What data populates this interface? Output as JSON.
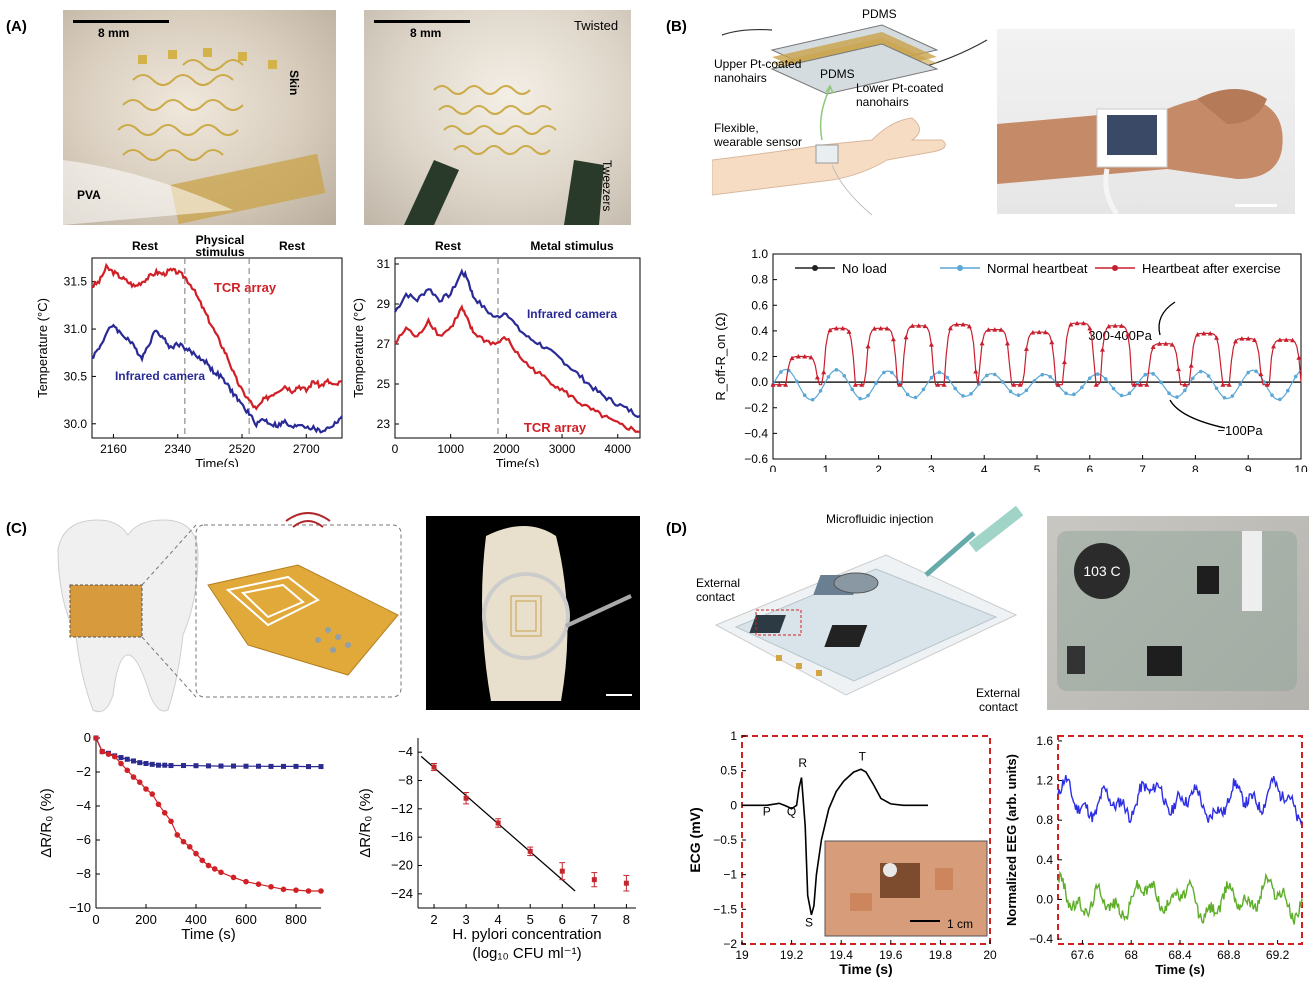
{
  "panels": {
    "A": {
      "label": "(A)",
      "photo1": {
        "scale": "8 mm",
        "skin": "Skin",
        "pva": "PVA"
      },
      "photo2": {
        "scale": "8 mm",
        "twisted": "Twisted",
        "tweezers": "Tweezers"
      },
      "chart1": {
        "phases": [
          "Rest",
          "Physical stimulus",
          "Rest"
        ],
        "series_labels": [
          "TCR array",
          "Infrared camera"
        ]
      },
      "chart2": {
        "phases": [
          "Rest",
          "Metal stimulus"
        ],
        "series_labels": [
          "Infrared camera",
          "TCR array"
        ]
      }
    },
    "B": {
      "label": "(B)",
      "diagram": {
        "pdms_top": "PDMS",
        "upper": "Upper Pt-coated nanohairs",
        "pdms_mid": "PDMS",
        "lower": "Lower Pt-coated nanohairs",
        "sensor": "Flexible, wearable sensor"
      },
      "chart": {
        "ann_high": "300-400Pa",
        "ann_low": "−100Pa"
      }
    },
    "C": {
      "label": "(C)"
    },
    "D": {
      "label": "(D)",
      "diagram": {
        "injection": "Microfluidic injection",
        "ext1": "External contact",
        "ext2": "External contact",
        "component": "103 C"
      },
      "ecg_waves": [
        "P",
        "Q",
        "R",
        "S",
        "T"
      ],
      "inset_scale": "1 cm"
    }
  },
  "chart_data": [
    {
      "id": "A-left",
      "type": "line",
      "xlabel": "Time(s)",
      "ylabel": "Temperature (°C)",
      "xlim": [
        2100,
        2800
      ],
      "ylim": [
        29.85,
        31.75
      ],
      "xticks": [
        2160,
        2340,
        2520,
        2700
      ],
      "yticks": [
        30.0,
        30.5,
        31.0,
        31.5
      ],
      "ytick_labels": [
        "30.0",
        "30.5",
        "31.0",
        "31.5"
      ],
      "vlines": [
        2360,
        2540
      ],
      "series": [
        {
          "name": "TCR array",
          "color": "#d11f26",
          "x": [
            2100,
            2120,
            2140,
            2160,
            2180,
            2200,
            2220,
            2240,
            2260,
            2280,
            2300,
            2320,
            2340,
            2360,
            2380,
            2400,
            2420,
            2440,
            2460,
            2480,
            2500,
            2520,
            2540,
            2560,
            2580,
            2600,
            2620,
            2640,
            2660,
            2680,
            2700,
            2720,
            2740,
            2760,
            2780,
            2800
          ],
          "y": [
            31.45,
            31.5,
            31.65,
            31.6,
            31.55,
            31.5,
            31.45,
            31.5,
            31.55,
            31.6,
            31.58,
            31.62,
            31.6,
            31.55,
            31.45,
            31.3,
            31.15,
            31.0,
            30.85,
            30.7,
            30.5,
            30.35,
            30.25,
            30.15,
            30.25,
            30.3,
            30.35,
            30.4,
            30.35,
            30.4,
            30.35,
            30.45,
            30.4,
            30.45,
            30.4,
            30.45
          ]
        },
        {
          "name": "Infrared camera",
          "color": "#2a2a96",
          "x": [
            2100,
            2120,
            2140,
            2160,
            2180,
            2200,
            2220,
            2240,
            2260,
            2280,
            2300,
            2320,
            2340,
            2360,
            2380,
            2400,
            2420,
            2440,
            2460,
            2480,
            2500,
            2520,
            2540,
            2560,
            2580,
            2600,
            2620,
            2640,
            2660,
            2680,
            2700,
            2720,
            2740,
            2760,
            2780,
            2800
          ],
          "y": [
            30.7,
            30.8,
            30.95,
            31.05,
            30.95,
            30.9,
            30.8,
            30.7,
            30.85,
            31.0,
            30.9,
            30.8,
            30.85,
            30.8,
            30.75,
            30.7,
            30.65,
            30.55,
            30.5,
            30.4,
            30.3,
            30.2,
            30.1,
            30.0,
            30.05,
            30.0,
            29.98,
            30.02,
            29.95,
            30.0,
            29.97,
            29.95,
            29.92,
            29.95,
            30.0,
            30.08
          ]
        }
      ]
    },
    {
      "id": "A-right",
      "type": "line",
      "xlabel": "Time(s)",
      "ylabel": "Temperature (°C)",
      "xlim": [
        0,
        4400
      ],
      "ylim": [
        22.3,
        31.3
      ],
      "xticks": [
        0,
        1000,
        2000,
        3000,
        4000
      ],
      "yticks": [
        23,
        25,
        27,
        29,
        31
      ],
      "vlines": [
        1850
      ],
      "series": [
        {
          "name": "Infrared camera",
          "color": "#2a2a96",
          "x": [
            0,
            200,
            400,
            600,
            800,
            1000,
            1200,
            1300,
            1400,
            1600,
            1800,
            2000,
            2200,
            2400,
            2600,
            2800,
            3000,
            3200,
            3400,
            3600,
            3800,
            4000,
            4200,
            4400
          ],
          "y": [
            28.6,
            29.5,
            29.2,
            29.8,
            29.2,
            29.5,
            30.6,
            30.3,
            29.4,
            28.8,
            28.3,
            28.6,
            27.8,
            27.3,
            27.0,
            26.6,
            26.2,
            25.7,
            25.2,
            24.7,
            24.3,
            24.0,
            23.7,
            23.4
          ]
        },
        {
          "name": "TCR array",
          "color": "#d11f26",
          "x": [
            0,
            200,
            400,
            600,
            800,
            1000,
            1200,
            1300,
            1400,
            1600,
            1800,
            2000,
            2200,
            2400,
            2600,
            2800,
            3000,
            3200,
            3400,
            3600,
            3800,
            4000,
            4200,
            4400
          ],
          "y": [
            27.0,
            27.8,
            27.3,
            28.2,
            27.4,
            27.8,
            28.8,
            28.2,
            27.6,
            27.2,
            27.0,
            27.3,
            26.5,
            25.9,
            25.5,
            25.1,
            24.7,
            24.3,
            23.9,
            23.6,
            23.3,
            23.0,
            22.8,
            22.6
          ]
        }
      ]
    },
    {
      "id": "B",
      "type": "line",
      "xlabel": "Time(s)",
      "ylabel": "R_off-R_on (Ω)",
      "xlim": [
        0,
        10
      ],
      "ylim": [
        -0.6,
        1.0
      ],
      "xticks": [
        0,
        1,
        2,
        3,
        4,
        5,
        6,
        7,
        8,
        9,
        10
      ],
      "yticks": [
        -0.6,
        -0.4,
        -0.2,
        0.0,
        0.2,
        0.4,
        0.6,
        0.8,
        1.0
      ],
      "ytick_labels": [
        "−0.6",
        "−0.4",
        "−0.2",
        "0.0",
        "0.2",
        "0.4",
        "0.6",
        "0.8",
        "1.0"
      ],
      "legend": "top",
      "series": [
        {
          "name": "No load",
          "color": "#222222",
          "marker": "square"
        },
        {
          "name": "Normal heartbeat",
          "color": "#5ba7d6",
          "marker": "circle",
          "period": 0.98,
          "amplitude": 0.1
        },
        {
          "name": "Heartbeat after exercise",
          "color": "#c81e2d",
          "marker": "triangle",
          "peaks": [
            0.55,
            1.25,
            2.05,
            2.75,
            3.55,
            4.2,
            5.05,
            5.8,
            6.5,
            7.4,
            8.2,
            8.95,
            9.7
          ],
          "peak_values": [
            0.2,
            0.42,
            0.42,
            0.44,
            0.45,
            0.41,
            0.39,
            0.46,
            0.44,
            0.3,
            0.38,
            0.34,
            0.33
          ]
        }
      ]
    },
    {
      "id": "C-left",
      "type": "line",
      "xlabel": "Time (s)",
      "ylabel": "ΔR/R₀ (%)",
      "xlim": [
        0,
        900
      ],
      "ylim": [
        -10,
        0
      ],
      "xticks": [
        0,
        200,
        400,
        600,
        800
      ],
      "yticks": [
        0,
        -2,
        -4,
        -6,
        -8,
        -10
      ],
      "ytick_labels": [
        "0",
        "−2",
        "−4",
        "−6",
        "−8",
        "−10"
      ],
      "series": [
        {
          "name": "",
          "color": "#2b2b8f",
          "x": [
            0,
            25,
            50,
            75,
            100,
            125,
            150,
            175,
            200,
            225,
            250,
            275,
            300,
            350,
            400,
            450,
            500,
            550,
            600,
            650,
            700,
            750,
            800,
            850,
            900
          ],
          "y": [
            0,
            -0.8,
            -0.9,
            -1.05,
            -1.15,
            -1.25,
            -1.35,
            -1.45,
            -1.5,
            -1.55,
            -1.6,
            -1.6,
            -1.62,
            -1.62,
            -1.63,
            -1.64,
            -1.65,
            -1.65,
            -1.66,
            -1.66,
            -1.67,
            -1.67,
            -1.67,
            -1.68,
            -1.68
          ]
        },
        {
          "name": "",
          "color": "#d02126",
          "x": [
            0,
            25,
            50,
            75,
            100,
            125,
            150,
            175,
            200,
            225,
            250,
            275,
            300,
            325,
            350,
            375,
            400,
            425,
            450,
            475,
            500,
            550,
            600,
            650,
            700,
            750,
            800,
            850,
            900
          ],
          "y": [
            0,
            -0.8,
            -0.95,
            -1.1,
            -1.5,
            -1.9,
            -2.3,
            -2.6,
            -3.0,
            -3.3,
            -3.9,
            -4.4,
            -4.9,
            -5.7,
            -6.1,
            -6.4,
            -6.8,
            -7.2,
            -7.5,
            -7.7,
            -7.9,
            -8.2,
            -8.45,
            -8.6,
            -8.75,
            -8.9,
            -8.95,
            -9.0,
            -9.0
          ]
        }
      ]
    },
    {
      "id": "C-right",
      "type": "scatter",
      "xlabel": "H. pylori concentration",
      "xlabel2": "(log₁₀ CFU ml⁻¹)",
      "ylabel": "ΔR/R₀ (%)",
      "xlim": [
        1.5,
        8.3
      ],
      "ylim": [
        -26,
        -2
      ],
      "xticks": [
        2,
        3,
        4,
        5,
        6,
        7,
        8
      ],
      "yticks": [
        -4,
        -8,
        -12,
        -16,
        -20,
        -24
      ],
      "ytick_labels": [
        "−4",
        "−8",
        "−12",
        "−16",
        "−20",
        "−24"
      ],
      "points": {
        "x": [
          2,
          3,
          4,
          5,
          6,
          7,
          8
        ],
        "y": [
          -6.1,
          -10.5,
          -14.0,
          -18.0,
          -20.8,
          -22.0,
          -22.5
        ],
        "err": [
          0.5,
          0.8,
          0.6,
          0.6,
          1.2,
          1.0,
          1.1
        ],
        "color": "#c0282e"
      },
      "fit": {
        "x": [
          1.6,
          6.4
        ],
        "y": [
          -4.6,
          -23.6
        ]
      }
    },
    {
      "id": "D-left",
      "type": "line",
      "xlabel": "Time (s)",
      "ylabel": "ECG (mV)",
      "xlim": [
        19,
        20
      ],
      "ylim": [
        -2,
        1
      ],
      "xticks": [
        19,
        19.2,
        19.4,
        19.6,
        19.8,
        20
      ],
      "yticks": [
        1,
        0.5,
        0,
        -0.5,
        -1,
        -1.5,
        -2
      ],
      "ytick_labels": [
        "1",
        "0.5",
        "0",
        "−0.5",
        "−1",
        "−1.5",
        "−2"
      ],
      "series": [
        {
          "name": "",
          "color": "#000000",
          "x": [
            19.1,
            19.15,
            19.17,
            19.19,
            19.2,
            19.22,
            19.23,
            19.24,
            19.255,
            19.265,
            19.28,
            19.29,
            19.3,
            19.32,
            19.35,
            19.38,
            19.41,
            19.45,
            19.48,
            19.5,
            19.53,
            19.56,
            19.6,
            19.65,
            19.7
          ],
          "y": [
            0,
            0.03,
            0.0,
            -0.03,
            -0.05,
            0.0,
            0.25,
            0.4,
            -0.3,
            -1.3,
            -1.58,
            -1.45,
            -1.0,
            -0.5,
            -0.05,
            0.2,
            0.35,
            0.48,
            0.52,
            0.48,
            0.3,
            0.1,
            0.02,
            0,
            0
          ]
        }
      ]
    },
    {
      "id": "D-right",
      "type": "line",
      "xlabel": "Time (s)",
      "ylabel": "Normalized EEG (arb. units)",
      "xlim": [
        67.4,
        69.4
      ],
      "ylim": [
        -0.45,
        1.65
      ],
      "xticks": [
        67.6,
        68,
        68.4,
        68.8,
        69.2
      ],
      "yticks": [
        -0.4,
        0.0,
        0.4,
        0.8,
        1.2,
        1.6
      ],
      "ytick_labels": [
        "−0.4",
        "0.0",
        "0.4",
        "0.8",
        "1.2",
        "1.6"
      ],
      "series": [
        {
          "name": "",
          "color": "#2d2de6",
          "baseline": 1.0,
          "amplitude": 0.3
        },
        {
          "name": "",
          "color": "#5fae2a",
          "baseline": 0.0,
          "amplitude": 0.3
        }
      ]
    }
  ]
}
